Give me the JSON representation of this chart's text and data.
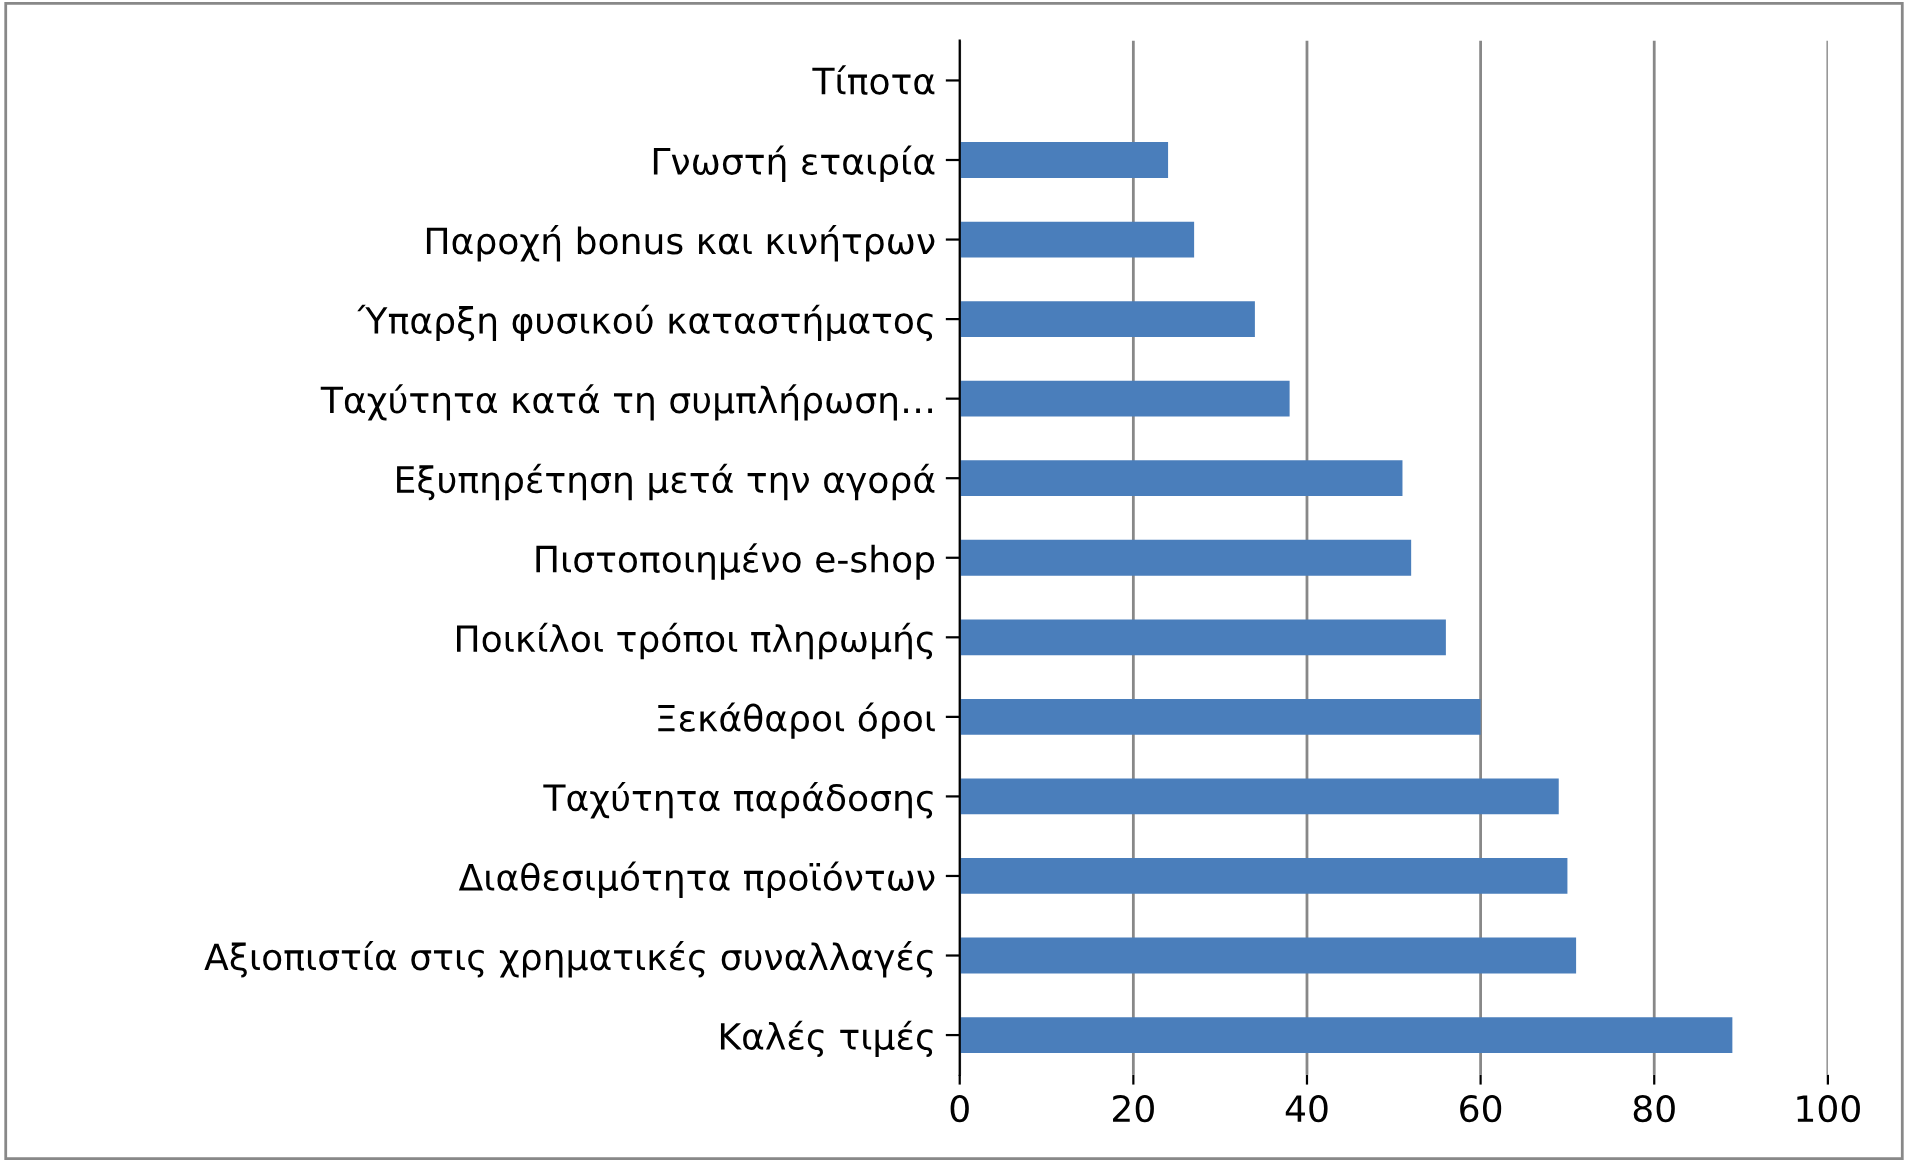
{
  "chart_data": {
    "type": "bar",
    "orientation": "horizontal",
    "categories": [
      "Τίποτα",
      "Γνωστή εταιρία",
      "Παροχή bonus και κινήτρων",
      "Ύπαρξη φυσικού καταστήματος",
      "Ταχύτητα κατά τη συμπλήρωση…",
      "Εξυπηρέτηση μετά την αγορά",
      "Πιστοποιημένο e-shop",
      "Ποικίλοι τρόποι πληρωμής",
      "Ξεκάθαροι όροι",
      "Ταχύτητα παράδοσης",
      "Διαθεσιμότητα προϊόντων",
      "Αξιοπιστία στις χρηματικές συναλλαγές",
      "Καλές τιμές"
    ],
    "values": [
      0,
      24,
      27,
      34,
      38,
      51,
      52,
      56,
      60,
      69,
      70,
      71,
      89
    ],
    "color": "#4a7ebb",
    "xlim": [
      0,
      100
    ],
    "xticks": [
      0,
      20,
      40,
      60,
      80,
      100
    ],
    "grid": "x",
    "legend": false
  }
}
